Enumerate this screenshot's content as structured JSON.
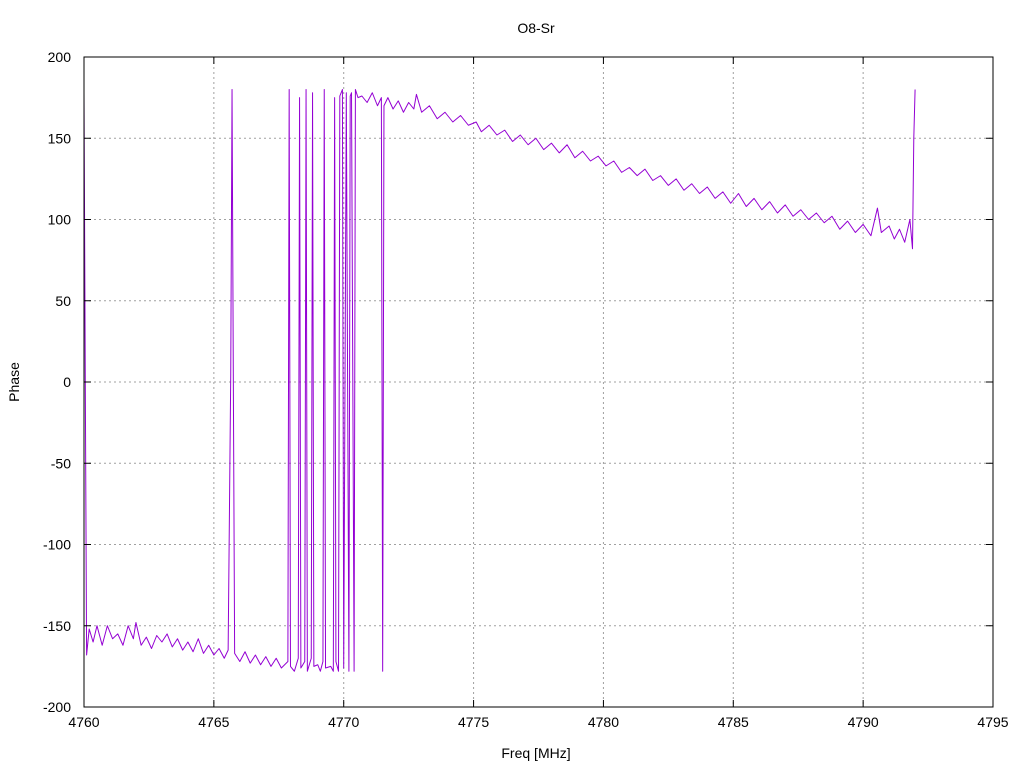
{
  "chart_data": {
    "type": "line",
    "title": "O8-Sr",
    "xlabel": "Freq [MHz]",
    "ylabel": "Phase",
    "xlim": [
      4760,
      4795
    ],
    "ylim": [
      -200,
      200
    ],
    "x_ticks": [
      4760,
      4765,
      4770,
      4775,
      4780,
      4785,
      4790,
      4795
    ],
    "y_ticks": [
      -200,
      -150,
      -100,
      -50,
      0,
      50,
      100,
      150,
      200
    ],
    "x_tick_labels": [
      "4760",
      "4765",
      "4770",
      "4775",
      "4780",
      "4785",
      "4790",
      "4795"
    ],
    "y_tick_labels": [
      "-200",
      "-150",
      "-100",
      "-50",
      "0",
      "50",
      "100",
      "150",
      "200"
    ],
    "grid": true,
    "legend": "none",
    "series": [
      {
        "color": "#9400d3",
        "points": [
          [
            4760.0,
            178
          ],
          [
            4760.05,
            0
          ],
          [
            4760.1,
            -168
          ],
          [
            4760.2,
            -152
          ],
          [
            4760.35,
            -160
          ],
          [
            4760.5,
            -150
          ],
          [
            4760.7,
            -162
          ],
          [
            4760.9,
            -150
          ],
          [
            4761.1,
            -158
          ],
          [
            4761.3,
            -155
          ],
          [
            4761.5,
            -162
          ],
          [
            4761.7,
            -150
          ],
          [
            4761.9,
            -158
          ],
          [
            4762.0,
            -148
          ],
          [
            4762.2,
            -162
          ],
          [
            4762.4,
            -157
          ],
          [
            4762.6,
            -164
          ],
          [
            4762.8,
            -156
          ],
          [
            4763.0,
            -160
          ],
          [
            4763.2,
            -155
          ],
          [
            4763.4,
            -163
          ],
          [
            4763.6,
            -158
          ],
          [
            4763.8,
            -165
          ],
          [
            4764.0,
            -160
          ],
          [
            4764.2,
            -166
          ],
          [
            4764.4,
            -158
          ],
          [
            4764.6,
            -167
          ],
          [
            4764.8,
            -162
          ],
          [
            4765.0,
            -168
          ],
          [
            4765.2,
            -164
          ],
          [
            4765.4,
            -170
          ],
          [
            4765.55,
            -165
          ],
          [
            4765.65,
            5
          ],
          [
            4765.7,
            180
          ],
          [
            4765.75,
            0
          ],
          [
            4765.8,
            -167
          ],
          [
            4766.0,
            -172
          ],
          [
            4766.2,
            -166
          ],
          [
            4766.4,
            -173
          ],
          [
            4766.6,
            -168
          ],
          [
            4766.8,
            -174
          ],
          [
            4767.0,
            -169
          ],
          [
            4767.2,
            -175
          ],
          [
            4767.4,
            -170
          ],
          [
            4767.6,
            -176
          ],
          [
            4767.85,
            -172
          ],
          [
            4767.9,
            180
          ],
          [
            4767.95,
            -175
          ],
          [
            4768.1,
            -178
          ],
          [
            4768.25,
            -170
          ],
          [
            4768.3,
            175
          ],
          [
            4768.35,
            -176
          ],
          [
            4768.5,
            -172
          ],
          [
            4768.55,
            180
          ],
          [
            4768.6,
            -178
          ],
          [
            4768.75,
            -170
          ],
          [
            4768.8,
            178
          ],
          [
            4768.85,
            -175
          ],
          [
            4769.0,
            -174
          ],
          [
            4769.1,
            -178
          ],
          [
            4769.2,
            -172
          ],
          [
            4769.25,
            180
          ],
          [
            4769.3,
            -176
          ],
          [
            4769.5,
            -175
          ],
          [
            4769.6,
            -178
          ],
          [
            4769.65,
            175
          ],
          [
            4769.7,
            -172
          ],
          [
            4769.8,
            -178
          ],
          [
            4769.85,
            176
          ],
          [
            4769.95,
            180
          ],
          [
            4770.0,
            -176
          ],
          [
            4770.05,
            0
          ],
          [
            4770.1,
            178
          ],
          [
            4770.2,
            -178
          ],
          [
            4770.25,
            176
          ],
          [
            4770.3,
            178
          ],
          [
            4770.4,
            -178
          ],
          [
            4770.45,
            180
          ],
          [
            4770.55,
            175
          ],
          [
            4770.7,
            176
          ],
          [
            4770.9,
            172
          ],
          [
            4771.1,
            178
          ],
          [
            4771.3,
            170
          ],
          [
            4771.45,
            175
          ],
          [
            4771.5,
            -178
          ],
          [
            4771.55,
            170
          ],
          [
            4771.7,
            175
          ],
          [
            4771.9,
            168
          ],
          [
            4772.1,
            173
          ],
          [
            4772.3,
            166
          ],
          [
            4772.5,
            172
          ],
          [
            4772.7,
            168
          ],
          [
            4772.8,
            177
          ],
          [
            4773.0,
            166
          ],
          [
            4773.3,
            170
          ],
          [
            4773.6,
            162
          ],
          [
            4773.9,
            166
          ],
          [
            4774.2,
            160
          ],
          [
            4774.5,
            164
          ],
          [
            4774.8,
            158
          ],
          [
            4775.1,
            160
          ],
          [
            4775.3,
            154
          ],
          [
            4775.6,
            158
          ],
          [
            4775.9,
            152
          ],
          [
            4776.2,
            155
          ],
          [
            4776.5,
            148
          ],
          [
            4776.8,
            152
          ],
          [
            4777.1,
            146
          ],
          [
            4777.4,
            150
          ],
          [
            4777.7,
            143
          ],
          [
            4778.0,
            147
          ],
          [
            4778.3,
            141
          ],
          [
            4778.6,
            146
          ],
          [
            4778.9,
            138
          ],
          [
            4779.2,
            142
          ],
          [
            4779.5,
            136
          ],
          [
            4779.8,
            139
          ],
          [
            4780.1,
            133
          ],
          [
            4780.4,
            136
          ],
          [
            4780.7,
            129
          ],
          [
            4781.0,
            132
          ],
          [
            4781.3,
            127
          ],
          [
            4781.6,
            131
          ],
          [
            4781.9,
            124
          ],
          [
            4782.2,
            127
          ],
          [
            4782.5,
            121
          ],
          [
            4782.8,
            125
          ],
          [
            4783.1,
            118
          ],
          [
            4783.4,
            122
          ],
          [
            4783.7,
            116
          ],
          [
            4784.0,
            120
          ],
          [
            4784.3,
            113
          ],
          [
            4784.6,
            117
          ],
          [
            4784.9,
            110
          ],
          [
            4785.2,
            116
          ],
          [
            4785.5,
            108
          ],
          [
            4785.8,
            113
          ],
          [
            4786.1,
            106
          ],
          [
            4786.4,
            111
          ],
          [
            4786.7,
            104
          ],
          [
            4787.0,
            109
          ],
          [
            4787.3,
            102
          ],
          [
            4787.6,
            106
          ],
          [
            4787.9,
            100
          ],
          [
            4788.2,
            104
          ],
          [
            4788.5,
            98
          ],
          [
            4788.8,
            102
          ],
          [
            4789.1,
            94
          ],
          [
            4789.4,
            99
          ],
          [
            4789.7,
            92
          ],
          [
            4790.0,
            97
          ],
          [
            4790.3,
            90
          ],
          [
            4790.55,
            107
          ],
          [
            4790.7,
            92
          ],
          [
            4791.0,
            96
          ],
          [
            4791.2,
            88
          ],
          [
            4791.4,
            94
          ],
          [
            4791.6,
            86
          ],
          [
            4791.8,
            100
          ],
          [
            4791.9,
            82
          ],
          [
            4791.95,
            150
          ],
          [
            4792.0,
            180
          ]
        ]
      }
    ]
  }
}
